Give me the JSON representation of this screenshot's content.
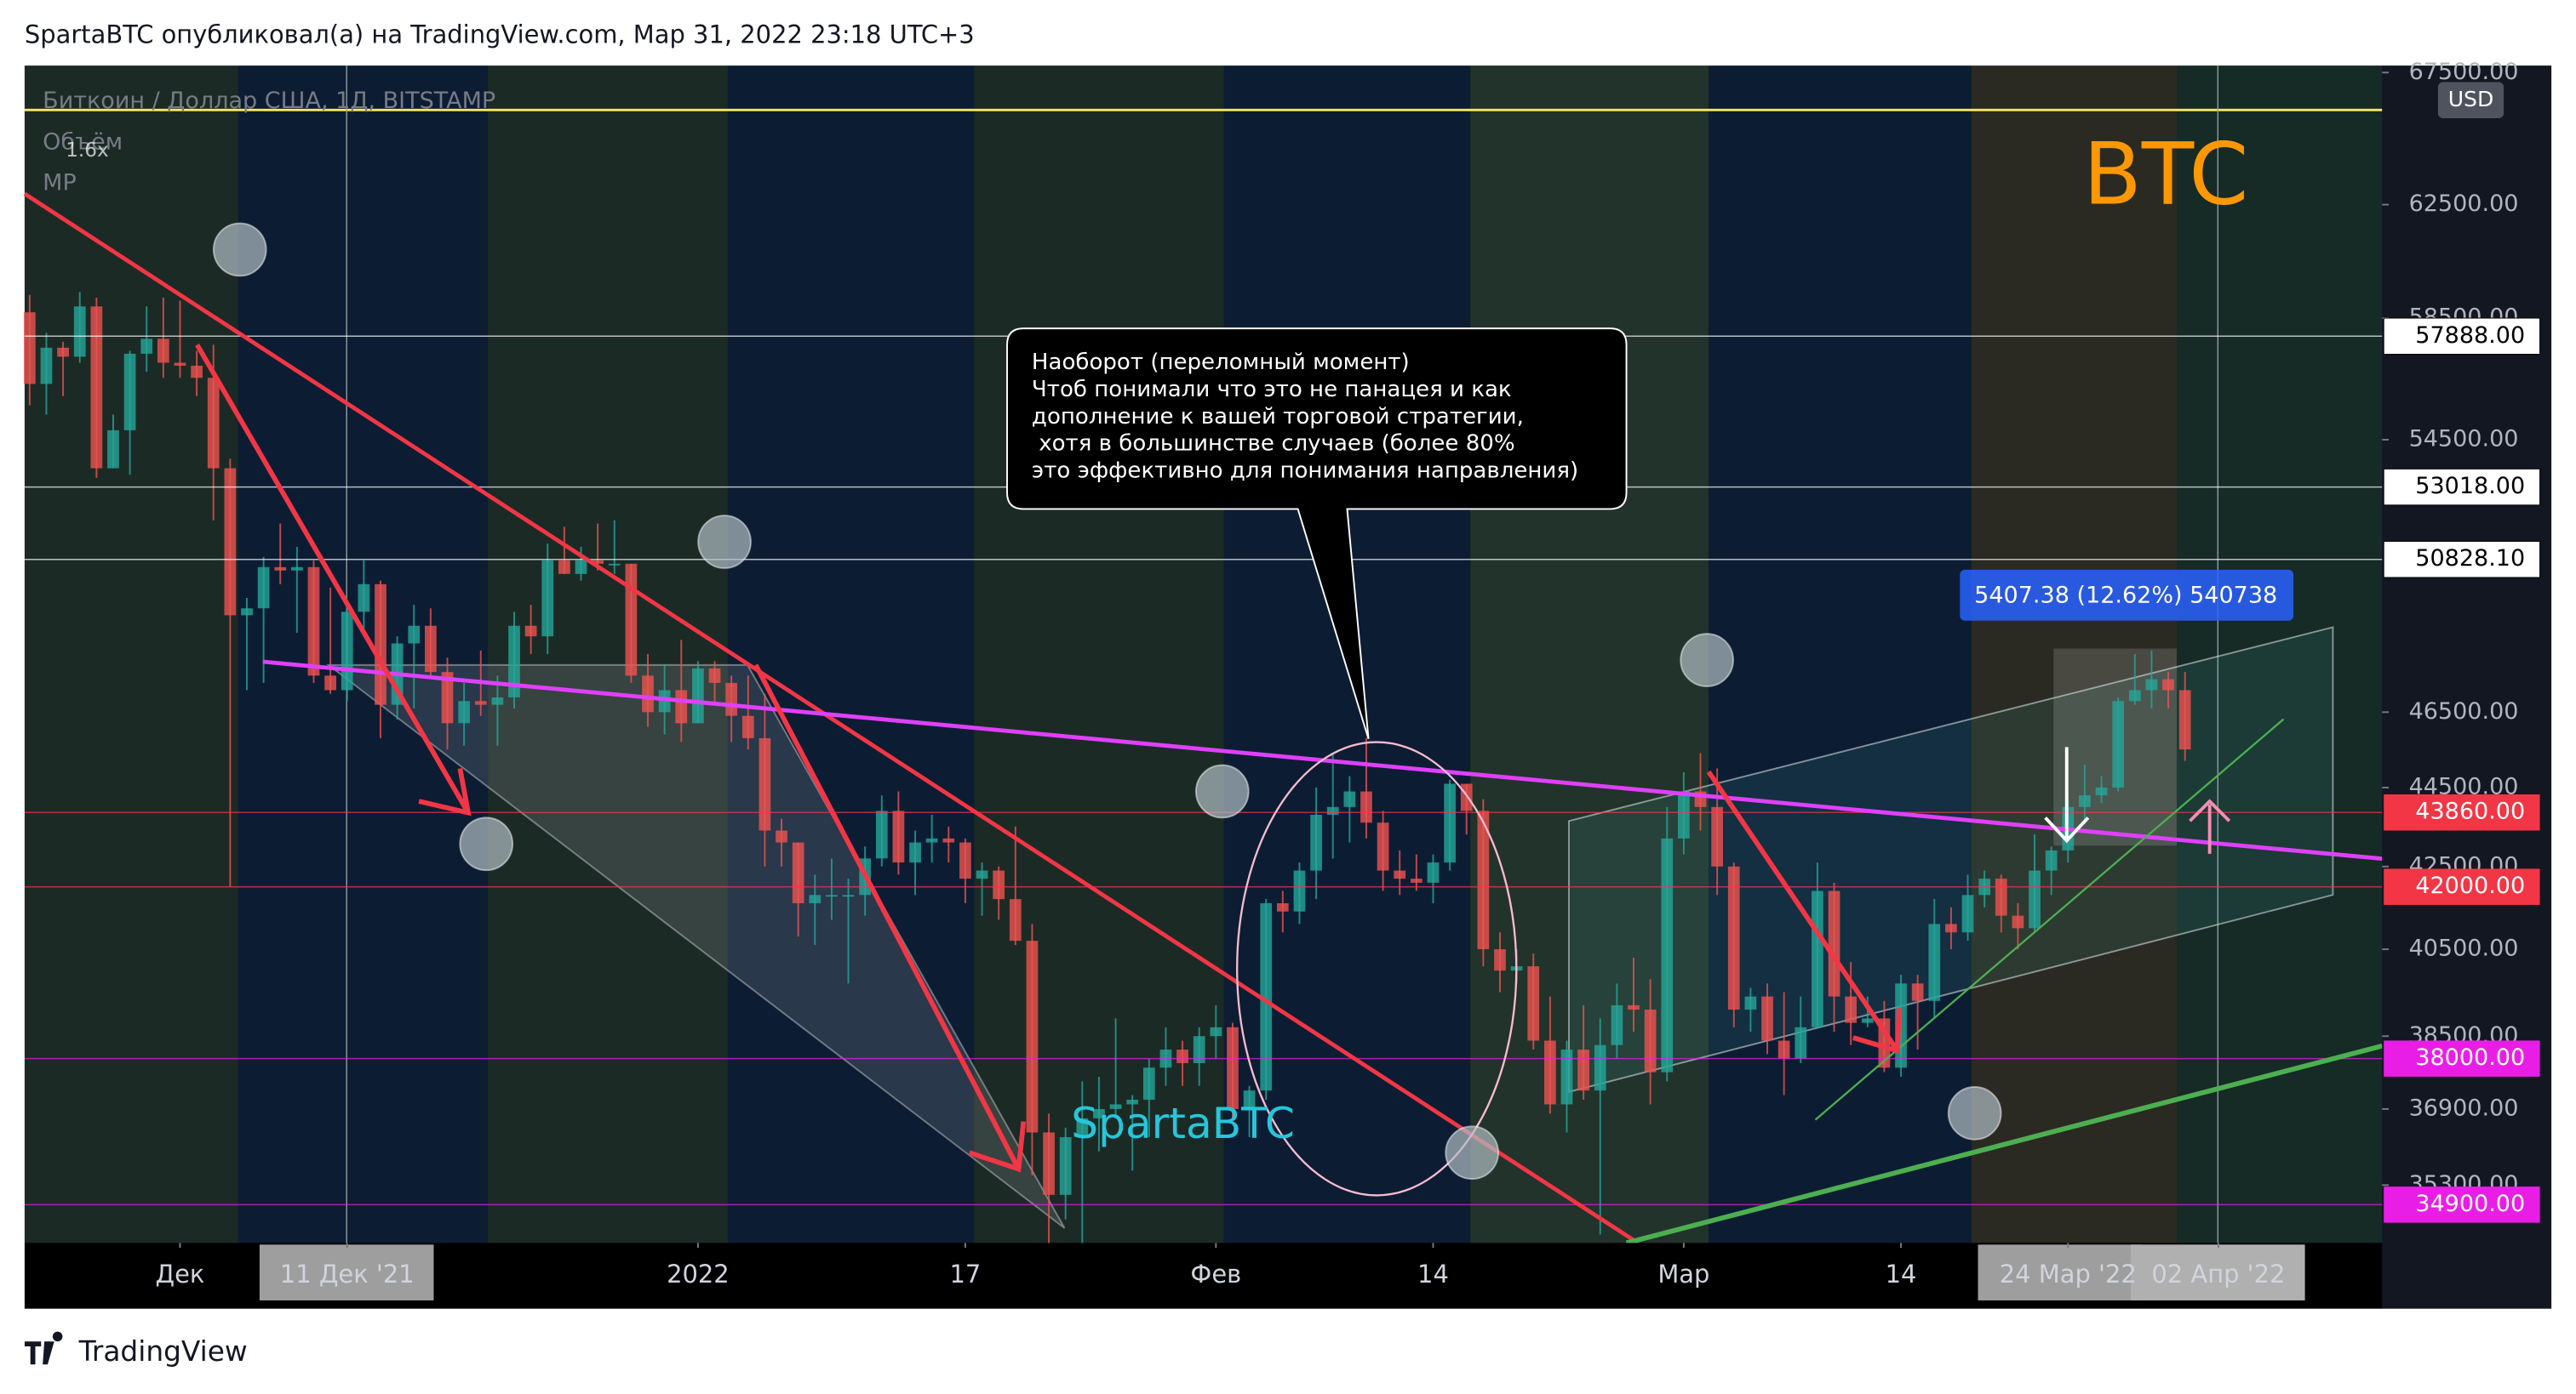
{
  "header": "SpartaBTC опубликовал(а) на TradingView.com, Мар 31, 2022 23:18 UTC+3",
  "footer": "TradingView",
  "chart_data": {
    "type": "candlestick",
    "title": "Биткоин / Доллар США, 1Д, BITSTAMP",
    "indicators": [
      "Объём",
      "MP"
    ],
    "scale_note": "1.6x",
    "currency": "USD",
    "watermark": "BTC",
    "author_tag": "SpartaBTC",
    "annotation": [
      "Наоборот (переломный момент)",
      "Чтоб понимали что это не панацея и как",
      "дополнение к вашей торговой стратегии,",
      " хотя в большинстве случаев (более 80%",
      "это эффективно для понимания направления)"
    ],
    "measure_label": "5407.38 (12.62%) 540738",
    "log_scale": true,
    "grid": false,
    "up_color": "#26a69a",
    "down_color": "#ef5350",
    "xlim": [
      -0.3,
      140.8
    ],
    "ylim": [
      34130,
      67770
    ],
    "xticks": [
      {
        "value": 9,
        "label": "Дек"
      },
      {
        "value": 19,
        "label": "11 Дек '21"
      },
      {
        "value": 40,
        "label": "2022"
      },
      {
        "value": 56,
        "label": "17"
      },
      {
        "value": 71,
        "label": "Фев"
      },
      {
        "value": 84,
        "label": "14"
      },
      {
        "value": 99,
        "label": "Мар"
      },
      {
        "value": 112,
        "label": "14"
      },
      {
        "value": 122,
        "label": "24 Мар '22"
      },
      {
        "value": 131,
        "label": "02 Апр '22"
      }
    ],
    "yticks": [
      {
        "value": 67500,
        "label": "67500.00"
      },
      {
        "value": 62500,
        "label": "62500.00"
      },
      {
        "value": 58500,
        "label": "58500.00"
      },
      {
        "value": 54500,
        "label": "54500.00"
      },
      {
        "value": 46500,
        "label": "46500.00"
      },
      {
        "value": 44500,
        "label": "44500.00"
      },
      {
        "value": 42500,
        "label": "42500.00"
      },
      {
        "value": 40500,
        "label": "40500.00"
      },
      {
        "value": 38500,
        "label": "38500.00"
      },
      {
        "value": 36900,
        "label": "36900.00"
      },
      {
        "value": 35300,
        "label": "35300.00"
      }
    ],
    "levels": [
      {
        "value": 57888,
        "label": "57888.00",
        "color": "#ffffff"
      },
      {
        "value": 53018,
        "label": "53018.00",
        "color": "#ffffff"
      },
      {
        "value": 50828.1,
        "label": "50828.10",
        "color": "#ffffff"
      },
      {
        "value": 43860,
        "label": "43860.00",
        "color": "#f23645"
      },
      {
        "value": 42000,
        "label": "42000.00",
        "color": "#f23645"
      },
      {
        "value": 38000,
        "label": "38000.00",
        "color": "#e91ee6"
      },
      {
        "value": 34900,
        "label": "34900.00",
        "color": "#e91ee6"
      }
    ],
    "candles": [
      [
        58700,
        59300,
        55600,
        56300
      ],
      [
        56300,
        58000,
        55300,
        57500
      ],
      [
        57500,
        57700,
        55900,
        57200
      ],
      [
        57200,
        59400,
        57000,
        58900
      ],
      [
        58900,
        59200,
        53300,
        53600
      ],
      [
        53600,
        55300,
        53600,
        54800
      ],
      [
        54800,
        57400,
        53400,
        57300
      ],
      [
        57300,
        58900,
        56700,
        57800
      ],
      [
        57800,
        59200,
        56500,
        57000
      ],
      [
        57000,
        59100,
        56500,
        56900
      ],
      [
        56900,
        57400,
        55900,
        56500
      ],
      [
        56500,
        57600,
        52000,
        53600
      ],
      [
        53600,
        53900,
        42000,
        49200
      ],
      [
        49200,
        49700,
        47100,
        49400
      ],
      [
        49400,
        50900,
        47300,
        50600
      ],
      [
        50600,
        51900,
        50100,
        50500
      ],
      [
        50500,
        51200,
        48700,
        50600
      ],
      [
        50600,
        50800,
        47300,
        47500
      ],
      [
        47500,
        50000,
        47000,
        47100
      ],
      [
        47100,
        49500,
        46800,
        49300
      ],
      [
        49300,
        50800,
        48600,
        50100
      ],
      [
        50100,
        50200,
        45800,
        46700
      ],
      [
        46700,
        48600,
        46300,
        48400
      ],
      [
        48400,
        49500,
        46600,
        48900
      ],
      [
        48900,
        49400,
        47500,
        47600
      ],
      [
        47600,
        48000,
        45500,
        46200
      ],
      [
        46200,
        47300,
        45600,
        46800
      ],
      [
        46800,
        48200,
        46400,
        46700
      ],
      [
        46700,
        47500,
        45600,
        46900
      ],
      [
        46900,
        49300,
        46600,
        48900
      ],
      [
        48900,
        49500,
        48100,
        48600
      ],
      [
        48600,
        51300,
        48100,
        50800
      ],
      [
        50800,
        51800,
        50400,
        50400
      ],
      [
        50400,
        51200,
        50200,
        50800
      ],
      [
        50800,
        51900,
        50500,
        50700
      ],
      [
        50700,
        52000,
        50400,
        50700
      ],
      [
        50700,
        50700,
        47300,
        47500
      ],
      [
        47500,
        48100,
        46100,
        46500
      ],
      [
        46500,
        47800,
        45900,
        47100
      ],
      [
        47100,
        48500,
        45700,
        46200
      ],
      [
        46200,
        47900,
        46200,
        47700
      ],
      [
        47700,
        47900,
        46700,
        47300
      ],
      [
        47300,
        47500,
        45700,
        46400
      ],
      [
        46400,
        47500,
        45500,
        45800
      ],
      [
        45800,
        47000,
        42500,
        43400
      ],
      [
        43400,
        43700,
        42500,
        43100
      ],
      [
        43100,
        43100,
        40800,
        41600
      ],
      [
        41600,
        42300,
        40600,
        41800
      ],
      [
        41800,
        42700,
        41200,
        41800
      ],
      [
        41800,
        42200,
        39700,
        41800
      ],
      [
        41800,
        43000,
        41300,
        42700
      ],
      [
        42700,
        44300,
        42500,
        43900
      ],
      [
        43900,
        44400,
        42300,
        42600
      ],
      [
        42600,
        43400,
        41800,
        43100
      ],
      [
        43100,
        43800,
        42600,
        43200
      ],
      [
        43200,
        43500,
        42600,
        43100
      ],
      [
        43100,
        43200,
        41600,
        42200
      ],
      [
        42200,
        42600,
        41300,
        42400
      ],
      [
        42400,
        42500,
        41200,
        41700
      ],
      [
        41700,
        43500,
        40600,
        40700
      ],
      [
        40700,
        41100,
        35500,
        36400
      ],
      [
        36400,
        36800,
        34100,
        35100
      ],
      [
        35100,
        36500,
        34600,
        36300
      ],
      [
        36300,
        37500,
        33500,
        36700
      ],
      [
        36700,
        37600,
        36000,
        36900
      ],
      [
        36900,
        38900,
        36700,
        37000
      ],
      [
        37000,
        37200,
        35600,
        37100
      ],
      [
        37100,
        38000,
        36300,
        37800
      ],
      [
        37800,
        38700,
        37400,
        38200
      ],
      [
        38200,
        38400,
        37400,
        37900
      ],
      [
        37900,
        38700,
        37400,
        38500
      ],
      [
        38500,
        39200,
        38000,
        38700
      ],
      [
        38700,
        38800,
        36600,
        36900
      ],
      [
        36900,
        37400,
        36300,
        37300
      ],
      [
        37300,
        41700,
        37100,
        41600
      ],
      [
        41600,
        41900,
        40900,
        41400
      ],
      [
        41400,
        42600,
        41100,
        42400
      ],
      [
        42400,
        44500,
        41700,
        43800
      ],
      [
        43800,
        45400,
        42700,
        44000
      ],
      [
        44000,
        44800,
        43100,
        44400
      ],
      [
        44400,
        45800,
        43200,
        43600
      ],
      [
        43600,
        43900,
        41900,
        42400
      ],
      [
        42400,
        42900,
        41800,
        42200
      ],
      [
        42200,
        42800,
        41900,
        42100
      ],
      [
        42100,
        42800,
        41600,
        42600
      ],
      [
        42600,
        44700,
        42400,
        44600
      ],
      [
        44600,
        44600,
        43300,
        43900
      ],
      [
        43900,
        44200,
        40100,
        40500
      ],
      [
        40500,
        40900,
        39500,
        40000
      ],
      [
        40000,
        40500,
        39700,
        40100
      ],
      [
        40100,
        40400,
        38200,
        38400
      ],
      [
        38400,
        39400,
        36800,
        37000
      ],
      [
        37000,
        38400,
        36400,
        38200
      ],
      [
        38200,
        39200,
        37100,
        37300
      ],
      [
        37300,
        38900,
        34300,
        38300
      ],
      [
        38300,
        39700,
        38000,
        39200
      ],
      [
        39200,
        40300,
        38600,
        39100
      ],
      [
        39100,
        39800,
        37000,
        37700
      ],
      [
        37700,
        44000,
        37500,
        43200
      ],
      [
        43200,
        44900,
        42800,
        44400
      ],
      [
        44400,
        45400,
        43400,
        44000
      ],
      [
        44000,
        45000,
        41800,
        42500
      ],
      [
        42500,
        42600,
        38700,
        39100
      ],
      [
        39100,
        39600,
        38600,
        39400
      ],
      [
        39400,
        39700,
        38100,
        38400
      ],
      [
        38400,
        39500,
        37200,
        38000
      ],
      [
        38000,
        39400,
        37900,
        38700
      ],
      [
        38700,
        42600,
        38700,
        41900
      ],
      [
        41900,
        42100,
        38600,
        39400
      ],
      [
        39400,
        40200,
        38300,
        38800
      ],
      [
        38800,
        39400,
        38700,
        38900
      ],
      [
        38900,
        39300,
        37700,
        37800
      ],
      [
        37800,
        39900,
        37600,
        39700
      ],
      [
        39700,
        39900,
        38200,
        39300
      ],
      [
        39300,
        41700,
        38900,
        41100
      ],
      [
        41100,
        41500,
        40500,
        40900
      ],
      [
        40900,
        42300,
        40700,
        41800
      ],
      [
        41800,
        42400,
        41500,
        42200
      ],
      [
        42200,
        42300,
        40900,
        41300
      ],
      [
        41300,
        41600,
        40500,
        41000
      ],
      [
        41000,
        43300,
        40900,
        42400
      ],
      [
        42400,
        43000,
        41800,
        42900
      ],
      [
        42900,
        44200,
        42600,
        44000
      ],
      [
        44000,
        45100,
        43600,
        44300
      ],
      [
        44300,
        44800,
        44100,
        44500
      ],
      [
        44500,
        46900,
        44400,
        46800
      ],
      [
        46800,
        48100,
        46700,
        47100
      ],
      [
        47100,
        48200,
        46600,
        47400
      ],
      [
        47400,
        47600,
        46600,
        47100
      ],
      [
        47100,
        47600,
        45200,
        45500
      ]
    ]
  }
}
